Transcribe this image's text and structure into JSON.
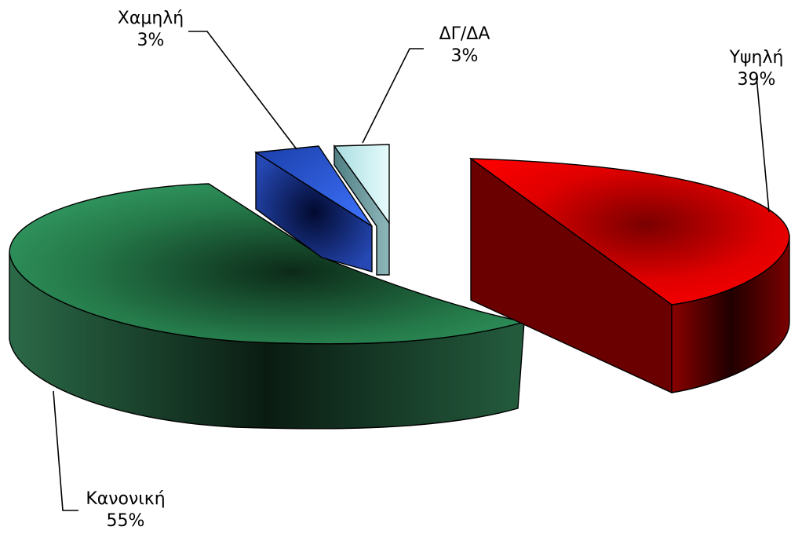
{
  "chart_data": {
    "type": "pie",
    "title": "",
    "series": [
      {
        "values": [
          39,
          55,
          3,
          3
        ],
        "labels": [
          "Υψηλή",
          "Κανονική",
          "Χαμηλή",
          "ΔΓ/ΔΑ"
        ],
        "value_labels": [
          "39%",
          "55%",
          "3%",
          "3%"
        ]
      }
    ],
    "style": "3d-exploded",
    "colors": [
      "#ff0000",
      "#2e8b57",
      "#2f5de6",
      "#c8f2f4"
    ],
    "legend": "none"
  }
}
